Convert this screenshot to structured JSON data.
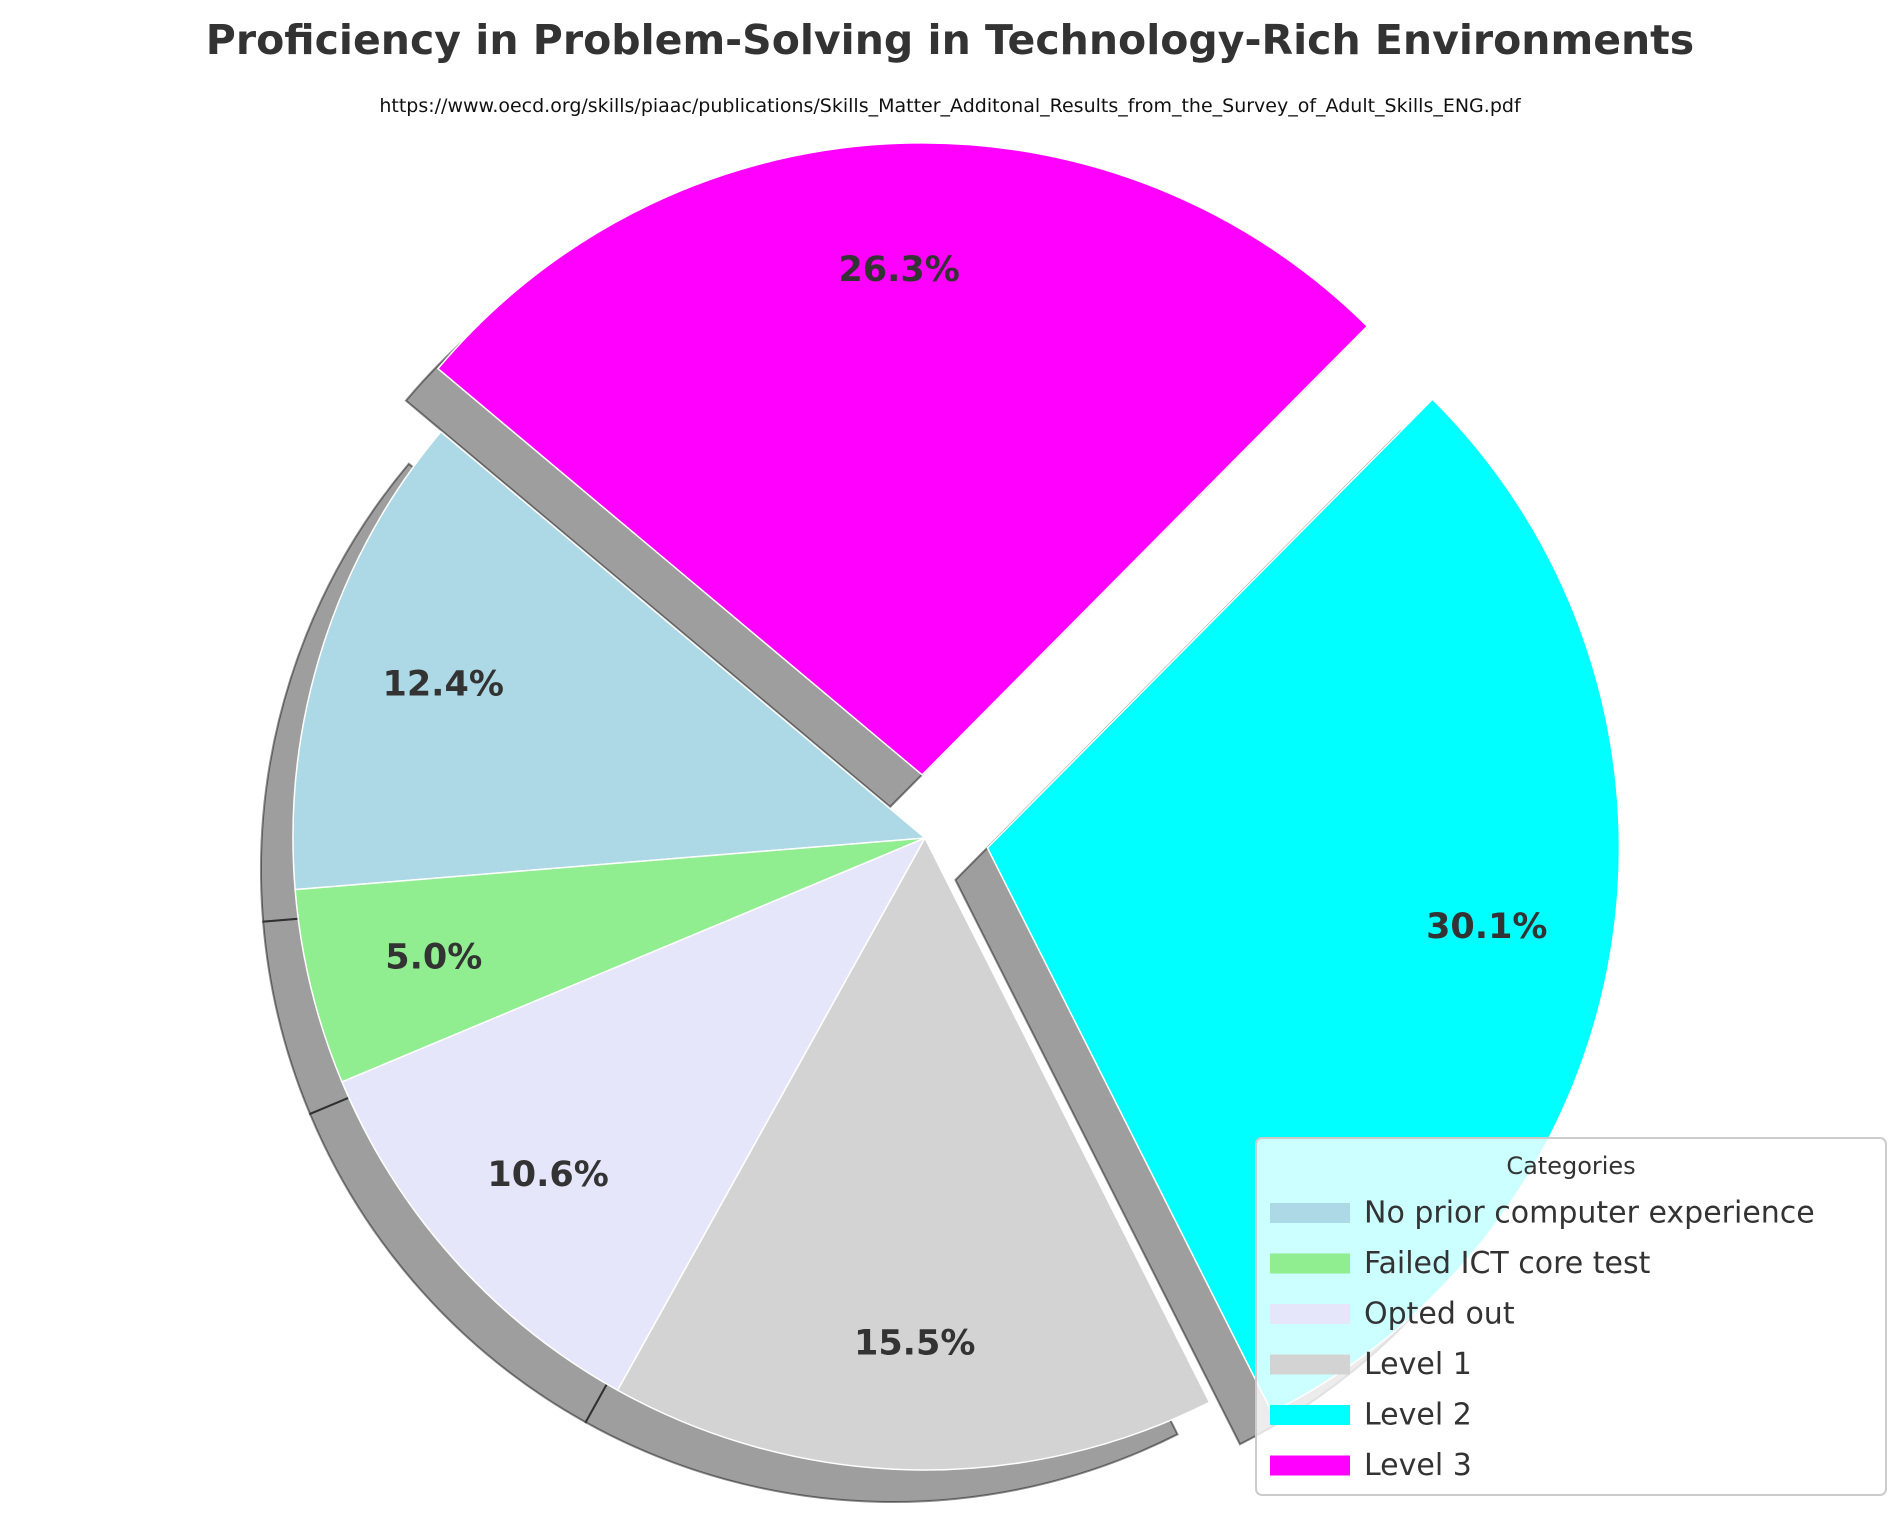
{
  "colors": {
    "background": "#ffffff",
    "text": "#333333",
    "shadow": "#000000",
    "slice_edge": "#ffffff",
    "legend_border": "#cccccc"
  },
  "chart_data": {
    "type": "pie",
    "title": "Proficiency in Problem-Solving in Technology-Rich Environments",
    "subtitle": "https://www.oecd.org/skills/piaac/publications/Skills_Matter_Additonal_Results_from_the_Survey_of_Adult_Skills_ENG.pdf",
    "legend_title": "Categories",
    "legend_position": "lower-right",
    "start_angle_deg": 140,
    "direction": "counterclockwise",
    "shadow": true,
    "slices": [
      {
        "label": "No prior computer experience",
        "value": 12.4,
        "display": "12.4%",
        "color": "#add8e6",
        "exploded": false
      },
      {
        "label": "Failed ICT core test",
        "value": 5.0,
        "display": "5.0%",
        "color": "#90ee90",
        "exploded": false
      },
      {
        "label": "Opted out",
        "value": 10.6,
        "display": "10.6%",
        "color": "#e6e6fa",
        "exploded": false
      },
      {
        "label": "Level 1",
        "value": 15.5,
        "display": "15.5%",
        "color": "#d3d3d3",
        "exploded": false
      },
      {
        "label": "Level 2",
        "value": 30.1,
        "display": "30.1%",
        "color": "#00ffff",
        "exploded": true
      },
      {
        "label": "Level 3",
        "value": 26.3,
        "display": "26.3%",
        "color": "#ff00ff",
        "exploded": true
      }
    ]
  }
}
